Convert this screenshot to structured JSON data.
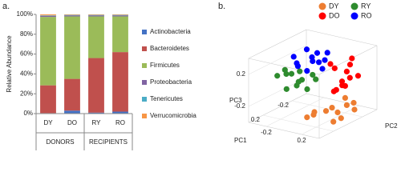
{
  "chart_data": [
    {
      "type": "bar",
      "stacked": true,
      "panel_label": "a.",
      "ylabel": "Relative Abundance",
      "categories": [
        "DY",
        "DO",
        "RY",
        "RO"
      ],
      "groups": [
        "DONORS",
        "RECIPIENTS"
      ],
      "series": [
        {
          "name": "Actinobacteria",
          "color": "#4472c4",
          "values": [
            0.5,
            3,
            1,
            2
          ]
        },
        {
          "name": "Bacteroidetes",
          "color": "#c0504d",
          "values": [
            28,
            32,
            55,
            60
          ]
        },
        {
          "name": "Firmicutes",
          "color": "#9bbb59",
          "values": [
            69,
            63,
            42,
            36
          ]
        },
        {
          "name": "Proteobacteria",
          "color": "#8064a2",
          "values": [
            1,
            1,
            1,
            1
          ]
        },
        {
          "name": "Tenericutes",
          "color": "#4bacc6",
          "values": [
            0.5,
            0.5,
            0.5,
            0.5
          ]
        },
        {
          "name": "Verrucomicrobia",
          "color": "#f79646",
          "values": [
            1,
            0.5,
            0.5,
            0.5
          ]
        }
      ],
      "ylim": [
        0,
        100
      ],
      "yticks": [
        {
          "value": 0,
          "label": "0%"
        },
        {
          "value": 20,
          "label": "20%"
        },
        {
          "value": 40,
          "label": "40%"
        },
        {
          "value": 60,
          "label": "60%"
        },
        {
          "value": 80,
          "label": "80%"
        },
        {
          "value": 100,
          "label": "100%"
        }
      ],
      "grid": false
    },
    {
      "type": "scatter3d",
      "panel_label": "b.",
      "xlabel": "PC1",
      "ylabel": "PC2",
      "zlabel": "PC3",
      "xlim": [
        -0.4,
        0.4
      ],
      "ylim": [
        -0.4,
        0.4
      ],
      "zlim": [
        -0.4,
        0.4
      ],
      "xticks": [
        -0.2,
        0.2
      ],
      "yticks": [
        -0.2,
        0.2
      ],
      "zticks": [
        -0.2,
        0.2
      ],
      "series": [
        {
          "name": "DY",
          "color": "#ed7d31",
          "x": [
            -0.2,
            -0.15,
            -0.1,
            -0.05,
            0.0,
            0.05,
            0.1,
            -0.18,
            -0.08,
            0.02,
            -0.12,
            0.08
          ],
          "y": [
            0.3,
            0.35,
            0.2,
            0.28,
            0.15,
            0.05,
            0.1,
            0.22,
            0.32,
            0.25,
            0.12,
            0.0
          ],
          "z": [
            -0.25,
            -0.3,
            -0.35,
            -0.38,
            -0.3,
            -0.35,
            -0.28,
            -0.2,
            -0.22,
            -0.4,
            -0.32,
            -0.38
          ]
        },
        {
          "name": "DO",
          "color": "#ff0000",
          "x": [
            -0.2,
            -0.15,
            -0.1,
            -0.05,
            0.0,
            0.05,
            -0.18,
            -0.08,
            -0.12,
            0.02,
            -0.02,
            -0.2
          ],
          "y": [
            0.35,
            0.3,
            0.25,
            0.38,
            0.2,
            0.28,
            0.22,
            0.32,
            0.15,
            0.35,
            0.25,
            0.28
          ],
          "z": [
            0.1,
            0.25,
            0.05,
            0.15,
            0.3,
            0.0,
            -0.05,
            0.2,
            0.18,
            0.08,
            -0.02,
            0.3
          ]
        },
        {
          "name": "RY",
          "color": "#2e8b2e",
          "x": [
            0.0,
            0.05,
            0.1,
            0.15,
            0.2,
            0.08,
            0.12,
            0.02,
            0.18,
            0.1,
            0.05,
            0.15
          ],
          "y": [
            -0.3,
            -0.2,
            -0.1,
            0.0,
            0.1,
            -0.25,
            -0.05,
            0.05,
            -0.15,
            0.08,
            -0.12,
            -0.28
          ],
          "z": [
            0.05,
            0.1,
            0.0,
            0.12,
            0.05,
            0.15,
            0.2,
            0.08,
            -0.02,
            0.18,
            0.02,
            0.1
          ]
        },
        {
          "name": "RO",
          "color": "#0000ff",
          "x": [
            -0.1,
            -0.05,
            0.0,
            0.05,
            0.1,
            -0.08,
            0.02,
            0.08,
            -0.02,
            0.06,
            -0.06,
            0.1
          ],
          "y": [
            -0.15,
            -0.05,
            0.05,
            0.15,
            -0.1,
            0.1,
            -0.2,
            0.0,
            0.12,
            -0.12,
            0.02,
            0.08
          ],
          "z": [
            0.35,
            0.3,
            0.4,
            0.25,
            0.28,
            0.38,
            0.3,
            0.2,
            0.32,
            0.22,
            0.25,
            0.35
          ]
        }
      ]
    }
  ]
}
